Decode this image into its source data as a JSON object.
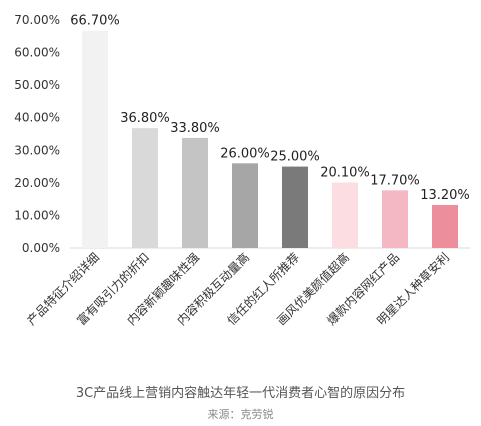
{
  "chart_data": {
    "type": "bar",
    "categories": [
      "产品特征介绍详细",
      "富有吸引力的折扣",
      "内容新颖趣味性强",
      "内容积极互动量高",
      "信任的红人所推荐",
      "画风优美颜值超高",
      "爆款内容网红产品",
      "明星达人种草安利"
    ],
    "values": [
      66.7,
      36.8,
      33.8,
      26.0,
      25.0,
      20.1,
      17.7,
      13.2
    ],
    "value_labels": [
      "66.70%",
      "36.80%",
      "33.80%",
      "26.00%",
      "25.00%",
      "20.10%",
      "17.70%",
      "13.20%"
    ],
    "y_ticks": [
      "0.00%",
      "10.00%",
      "20.00%",
      "30.00%",
      "40.00%",
      "50.00%",
      "60.00%",
      "70.00%"
    ],
    "ylim": [
      0,
      70
    ],
    "grid": false,
    "bar_colors": [
      "#f2f2f2",
      "#d9d9d9",
      "#c4c4c4",
      "#a6a6a6",
      "#7a7a7a",
      "#fbdde2",
      "#f3b8c3",
      "#ec8e9c"
    ],
    "caption": "3C产品线上营销内容触达年轻一代消费者心智的原因分布",
    "source": "来源：克劳锐"
  }
}
